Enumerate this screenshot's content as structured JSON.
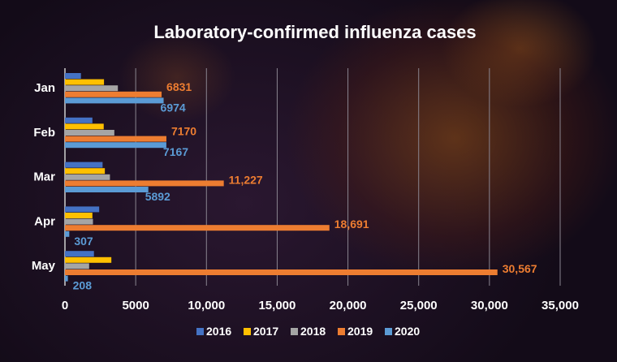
{
  "chart_data": {
    "type": "bar",
    "orientation": "horizontal",
    "title": "Laboratory-confirmed influenza cases",
    "categories": [
      "Jan",
      "Feb",
      "Mar",
      "Apr",
      "May"
    ],
    "series": [
      {
        "name": "2016",
        "color": "#4472c4",
        "values": [
          1130,
          1940,
          2660,
          2420,
          2050
        ]
      },
      {
        "name": "2017",
        "color": "#ffc000",
        "values": [
          2760,
          2740,
          2820,
          1940,
          3280
        ]
      },
      {
        "name": "2018",
        "color": "#a5a5a5",
        "values": [
          3740,
          3490,
          3180,
          1980,
          1710
        ]
      },
      {
        "name": "2019",
        "color": "#ed7d31",
        "values": [
          6831,
          7170,
          11227,
          18691,
          30567
        ],
        "labels": [
          "6831",
          "7170",
          "11,227",
          "18,691",
          "30,567"
        ]
      },
      {
        "name": "2020",
        "color": "#5b9bd5",
        "values": [
          6974,
          7167,
          5892,
          307,
          208
        ],
        "labels": [
          "6974",
          "7167",
          "5892",
          "307",
          "208"
        ]
      }
    ],
    "xlim": [
      0,
      35000
    ],
    "xticks": [
      0,
      5000,
      10000,
      15000,
      20000,
      25000,
      30000,
      35000
    ],
    "xtick_labels": [
      "0",
      "5000",
      "10,000",
      "15,000",
      "20,000",
      "25,000",
      "30,000",
      "35,000"
    ],
    "grid": true,
    "legend": "bottom"
  }
}
